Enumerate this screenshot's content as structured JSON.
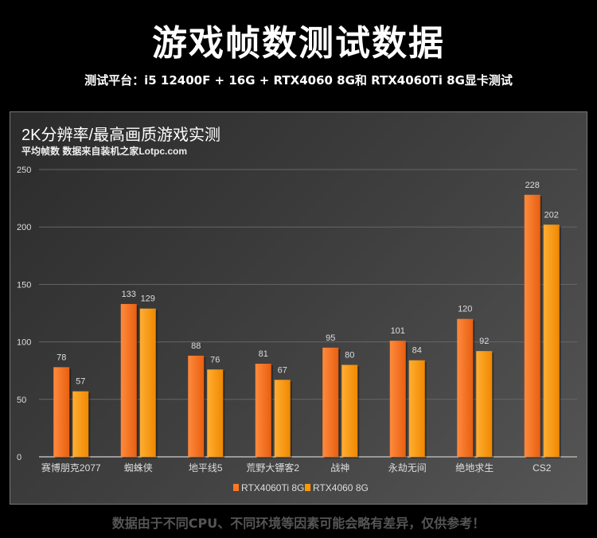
{
  "header": {
    "title": "游戏帧数测试数据",
    "subtitle": "测试平台：i5 12400F + 16G + RTX4060 8G和 RTX4060Ti 8G显卡测试"
  },
  "footer": "数据由于不同CPU、不同环境等因素可能会略有差异，仅供参考！",
  "chart_data": {
    "type": "bar",
    "title": "2K分辨率/最高画质游戏实测",
    "subtitle": "平均帧数 数据来自装机之家Lotpc.com",
    "categories": [
      "赛博朋克2077",
      "蜘蛛侠",
      "地平线5",
      "荒野大镖客2",
      "战神",
      "永劫无间",
      "绝地求生",
      "CS2"
    ],
    "series": [
      {
        "name": "RTX4060Ti 8G",
        "values": [
          78,
          133,
          88,
          81,
          95,
          101,
          120,
          228
        ],
        "color": "#ff7722"
      },
      {
        "name": "RTX4060 8G",
        "values": [
          57,
          129,
          76,
          67,
          80,
          84,
          92,
          202
        ],
        "color": "#ff9900"
      }
    ],
    "ylim": [
      0,
      250
    ],
    "yticks": [
      0,
      50,
      100,
      150,
      200,
      250
    ],
    "grid": true,
    "legend": "bottom"
  }
}
